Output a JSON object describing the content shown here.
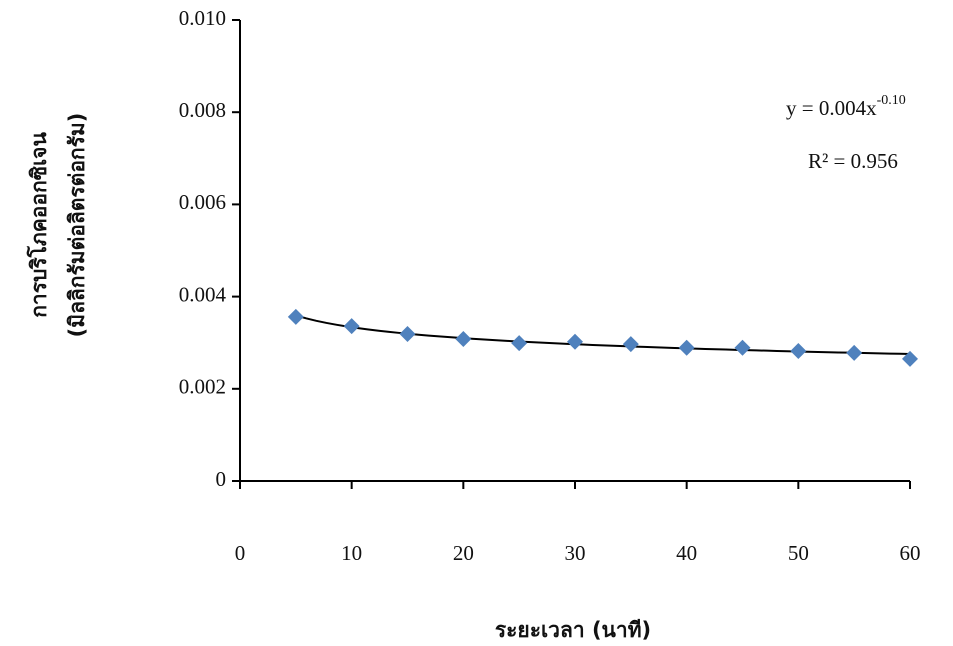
{
  "chart_data": {
    "type": "scatter",
    "y_label_lines": [
      "การบริโภคออกซิเจน",
      "(มิลลิกรัมต่อลิตรต่อกรัม)"
    ],
    "x_label": "ระยะเวลา (นาที)",
    "equation": [
      "y = 0.004x",
      "-0.10"
    ],
    "r_squared": "R² = 0.956",
    "x": [
      5,
      10,
      15,
      20,
      25,
      30,
      35,
      40,
      45,
      50,
      55,
      60
    ],
    "values": [
      0.00356,
      0.00336,
      0.00319,
      0.00308,
      0.00299,
      0.00302,
      0.00297,
      0.00289,
      0.00289,
      0.00282,
      0.00278,
      0.00265
    ],
    "color": "#4f81bd",
    "trendline": "power",
    "xlim": [
      0,
      60
    ],
    "xticks": [
      0,
      10,
      20,
      30,
      40,
      50,
      60
    ],
    "ylim": [
      0,
      0.01
    ],
    "yticks": [
      0,
      0.002,
      0.004,
      0.006,
      0.008,
      {
        "value": 0.01,
        "label": "0.010"
      }
    ]
  }
}
